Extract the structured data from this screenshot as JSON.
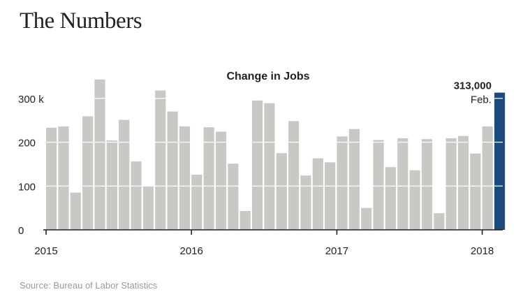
{
  "page": {
    "title": "The Numbers",
    "source": "Source: Bureau of Labor Statistics"
  },
  "colors": {
    "bar": "#c8c8c5",
    "highlight": "#1b4a7c",
    "grid": "#ffffff",
    "axis": "#222222"
  },
  "chart_data": {
    "type": "bar",
    "title": "Change in Jobs",
    "xlabel": "",
    "ylabel": "",
    "unit": "thousands",
    "ylim": [
      0,
      330
    ],
    "yticks": [
      {
        "value": 0,
        "label": "0"
      },
      {
        "value": 100,
        "label": "100"
      },
      {
        "value": 200,
        "label": "200"
      },
      {
        "value": 300,
        "label": "300 k"
      }
    ],
    "xticks": [
      {
        "index": 0,
        "label": "2015"
      },
      {
        "index": 12,
        "label": "2016"
      },
      {
        "index": 24,
        "label": "2017"
      },
      {
        "index": 36,
        "label": "2018"
      }
    ],
    "categories": [
      "Jan 2015",
      "Feb 2015",
      "Mar 2015",
      "Apr 2015",
      "May 2015",
      "Jun 2015",
      "Jul 2015",
      "Aug 2015",
      "Sep 2015",
      "Oct 2015",
      "Nov 2015",
      "Dec 2015",
      "Jan 2016",
      "Feb 2016",
      "Mar 2016",
      "Apr 2016",
      "May 2016",
      "Jun 2016",
      "Jul 2016",
      "Aug 2016",
      "Sep 2016",
      "Oct 2016",
      "Nov 2016",
      "Dec 2016",
      "Jan 2017",
      "Feb 2017",
      "Mar 2017",
      "Apr 2017",
      "May 2017",
      "Jun 2017",
      "Jul 2017",
      "Aug 2017",
      "Sep 2017",
      "Oct 2017",
      "Nov 2017",
      "Dec 2017",
      "Jan 2018",
      "Feb 2018"
    ],
    "values": [
      233,
      236,
      85,
      259,
      343,
      204,
      251,
      156,
      100,
      318,
      270,
      236,
      126,
      234,
      224,
      151,
      43,
      295,
      289,
      175,
      248,
      124,
      163,
      154,
      213,
      230,
      50,
      205,
      143,
      209,
      136,
      207,
      38,
      209,
      214,
      174,
      236,
      313
    ],
    "highlight_index": 37,
    "annotation": {
      "value_label": "313,000",
      "month_label": "Feb."
    }
  }
}
